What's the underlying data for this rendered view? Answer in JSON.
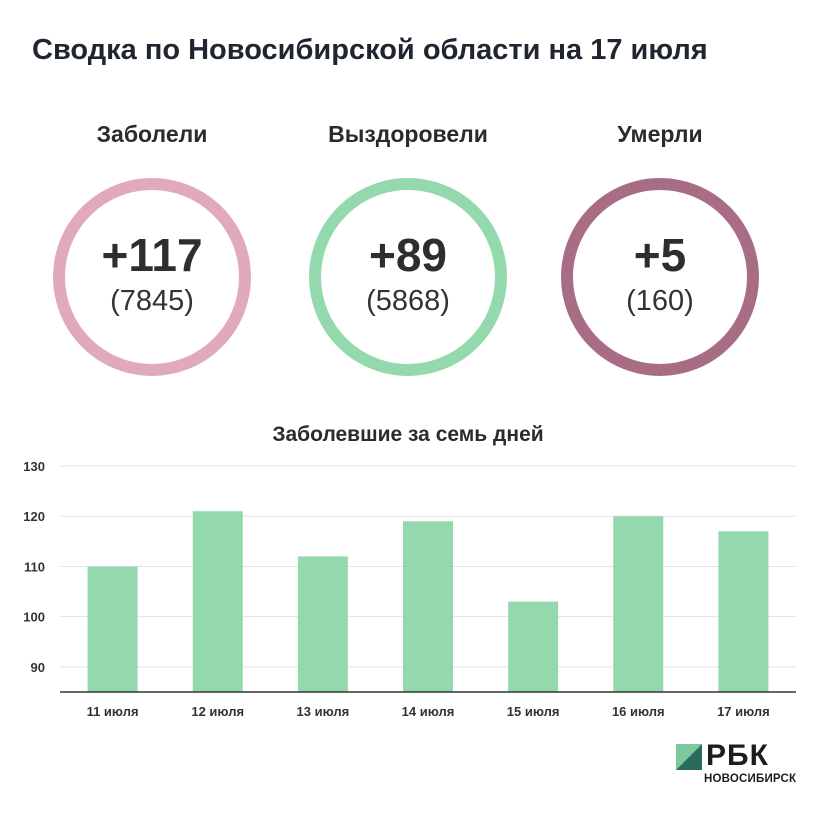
{
  "header": {
    "title": "Сводка по Новосибирской области на 17 июля"
  },
  "stats": [
    {
      "label": "Заболели",
      "delta": "+117",
      "total": "(7845)",
      "color": "#e1aabb"
    },
    {
      "label": "Выздоровели",
      "delta": "+89",
      "total": "(5868)",
      "color": "#94d8ae"
    },
    {
      "label": "Умерли",
      "delta": "+5",
      "total": "(160)",
      "color": "#a86c84"
    }
  ],
  "chart_data": {
    "type": "bar",
    "title": "Заболевшие за семь дней",
    "categories": [
      "11 июля",
      "12 июля",
      "13 июля",
      "14 июля",
      "15 июля",
      "16 июля",
      "17 июля"
    ],
    "values": [
      110,
      121,
      112,
      119,
      103,
      120,
      117
    ],
    "ylim": [
      85,
      130
    ],
    "yticks": [
      90,
      100,
      110,
      120,
      130
    ],
    "grid": true,
    "bar_color": "#94d8ae",
    "xlabel": "",
    "ylabel": ""
  },
  "logo": {
    "name": "РБК",
    "subtitle": "НОВОСИБИРСК",
    "mark_colors": [
      "#7cc9a0",
      "#2a6a5a"
    ]
  }
}
